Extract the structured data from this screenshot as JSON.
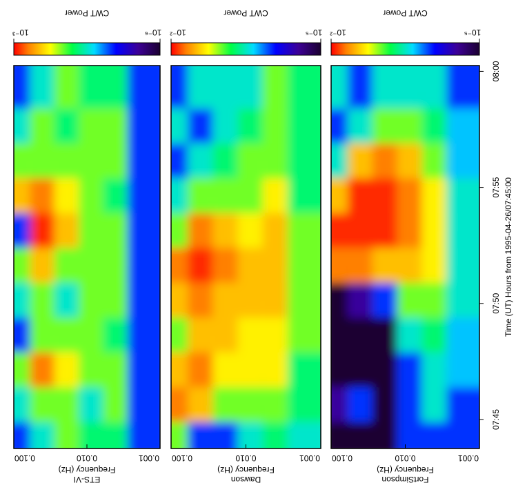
{
  "chart_data": [
    {
      "type": "heatmap",
      "title": "ETS-VI",
      "ylabel": "Frequency (Hz)",
      "log_y": true,
      "x": [
        -0.5,
        1,
        2.5,
        4,
        5.5,
        7,
        8.5,
        10,
        11.5,
        13,
        14.5
      ],
      "y": [
        0.068,
        0.0316,
        0.0147,
        0.0068,
        0.00316,
        0.00147
      ],
      "values": [
        [
          1e-05,
          3e-05,
          0.0001,
          1e-05,
          3e-05,
          0.0001,
          1e-05,
          0.0003,
          0.0001,
          3e-05,
          1e-05
        ],
        [
          3e-05,
          0.0001,
          0.0005,
          0.0001,
          0.0001,
          0.0003,
          0.0008,
          0.0005,
          0.0001,
          0.0001,
          3e-05
        ],
        [
          0.0001,
          0.0001,
          0.0002,
          0.0001,
          3e-05,
          0.0001,
          0.0003,
          0.0002,
          0.0001,
          5e-05,
          0.0001
        ],
        [
          5e-05,
          3e-05,
          0.0001,
          0.0001,
          0.0001,
          0.0001,
          0.0001,
          0.0001,
          0.0001,
          0.0001,
          5e-05
        ],
        [
          5e-05,
          0.0001,
          0.0001,
          5e-05,
          0.0001,
          0.0001,
          0.0001,
          5e-05,
          0.0001,
          0.0001,
          5e-05
        ],
        [
          1e-05,
          1e-05,
          1e-05,
          1e-05,
          1e-05,
          1e-05,
          1e-05,
          1e-05,
          1e-05,
          1e-05,
          1e-05
        ]
      ],
      "xlim": [
        -1.25,
        15.25
      ],
      "ylim": [
        0.1,
        0.001
      ],
      "yticks": [
        {
          "value": 0.1,
          "label": "0.100"
        },
        {
          "value": 0.01,
          "label": "0.010"
        },
        {
          "value": 0.001,
          "label": "0.001"
        }
      ],
      "colorbar": {
        "title": "CWT Power",
        "clim": [
          0.001,
          1e-06
        ],
        "ticks": [
          {
            "value": 0.001,
            "label": "10⁻³"
          },
          {
            "value": 1e-06,
            "label": "10⁻⁶"
          }
        ]
      }
    },
    {
      "type": "heatmap",
      "title": "Dawson",
      "ylabel": "Frequency (Hz)",
      "log_y": true,
      "x": [
        -0.5,
        1,
        2.5,
        4,
        5.5,
        7,
        8.5,
        10,
        11.5,
        13,
        14.5
      ],
      "y": [
        0.068,
        0.0316,
        0.0147,
        0.0068,
        0.00316,
        0.00147
      ],
      "values": [
        [
          0.001,
          0.005,
          0.003,
          0.001,
          0.003,
          0.005,
          0.001,
          0.0003,
          0.0001,
          0.0003,
          0.0001
        ],
        [
          0.0001,
          0.003,
          0.005,
          0.003,
          0.005,
          0.008,
          0.005,
          0.001,
          0.0003,
          0.0001,
          0.0003
        ],
        [
          0.0001,
          0.001,
          0.002,
          0.003,
          0.003,
          0.005,
          0.003,
          0.001,
          0.0005,
          0.0003,
          0.0003
        ],
        [
          0.0003,
          0.001,
          0.002,
          0.002,
          0.003,
          0.003,
          0.002,
          0.001,
          0.001,
          0.0005,
          0.0003
        ],
        [
          0.0005,
          0.001,
          0.002,
          0.002,
          0.003,
          0.003,
          0.003,
          0.002,
          0.001,
          0.001,
          0.001
        ],
        [
          0.0003,
          0.0005,
          0.0005,
          0.001,
          0.001,
          0.001,
          0.001,
          0.0005,
          0.0005,
          0.0005,
          0.0005
        ]
      ],
      "xlim": [
        -1.25,
        15.25
      ],
      "ylim": [
        0.1,
        0.001
      ],
      "yticks": [
        {
          "value": 0.1,
          "label": "0.100"
        },
        {
          "value": 0.01,
          "label": "0.010"
        },
        {
          "value": 0.001,
          "label": "0.001"
        }
      ],
      "colorbar": {
        "title": "CWT Power",
        "clim": [
          0.01,
          1e-05
        ],
        "ticks": [
          {
            "value": 0.01,
            "label": "10⁻²"
          },
          {
            "value": 1e-05,
            "label": "10⁻⁵"
          }
        ]
      }
    },
    {
      "type": "heatmap",
      "title": "FortSimpson",
      "ylabel": "Frequency (Hz)",
      "log_y": true,
      "xlabel": "Time (UT) Hours from 1995-04-26/07:45:00",
      "x": [
        -0.5,
        1,
        2.5,
        4,
        5.5,
        7,
        8.5,
        10,
        11.5,
        13,
        14.5
      ],
      "y": [
        0.068,
        0.0316,
        0.0147,
        0.0068,
        0.00316,
        0.00147
      ],
      "values": [
        [
          1e-05,
          3e-05,
          1e-05,
          1e-05,
          1e-05,
          0.005,
          0.008,
          0.003,
          0.0003,
          0.0001,
          0.0003
        ],
        [
          1e-05,
          0.0001,
          1e-05,
          1e-05,
          3e-05,
          0.005,
          0.008,
          0.008,
          0.003,
          0.0003,
          0.0001
        ],
        [
          1e-05,
          1e-05,
          1e-05,
          1e-05,
          0.0001,
          0.003,
          0.008,
          0.008,
          0.005,
          0.001,
          0.0003
        ],
        [
          0.0001,
          0.0001,
          0.0001,
          0.0003,
          0.001,
          0.003,
          0.005,
          0.005,
          0.003,
          0.001,
          0.0003
        ],
        [
          0.0001,
          0.0003,
          0.0003,
          0.0005,
          0.001,
          0.002,
          0.002,
          0.002,
          0.001,
          0.0005,
          0.0003
        ],
        [
          0.0001,
          0.0001,
          0.0002,
          0.0002,
          0.0003,
          0.0003,
          0.0003,
          0.0003,
          0.0002,
          0.0002,
          0.0001
        ]
      ],
      "xlim": [
        -1.25,
        15.25
      ],
      "ylim": [
        0.1,
        0.001
      ],
      "xticks": [
        {
          "value": 0,
          "label": "07:45"
        },
        {
          "value": 5,
          "label": "07:50"
        },
        {
          "value": 10,
          "label": "07:55"
        },
        {
          "value": 15,
          "label": "08:00"
        }
      ],
      "yticks": [
        {
          "value": 0.1,
          "label": "0.100"
        },
        {
          "value": 0.01,
          "label": "0.010"
        },
        {
          "value": 0.001,
          "label": "0.001"
        }
      ],
      "colorbar": {
        "title": "CWT Power",
        "clim": [
          0.01,
          1e-05
        ],
        "ticks": [
          {
            "value": 0.01,
            "label": "10⁻²"
          },
          {
            "value": 1e-05,
            "label": "10⁻⁵"
          }
        ]
      }
    }
  ]
}
